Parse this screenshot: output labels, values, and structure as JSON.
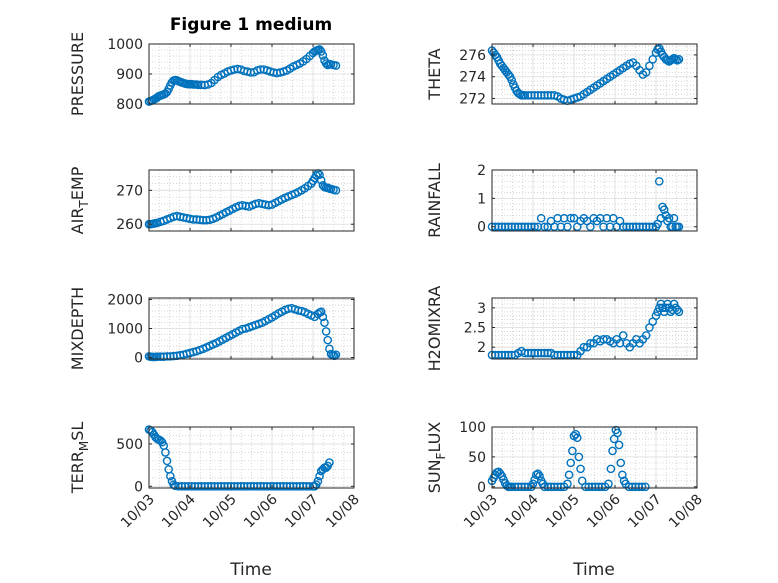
{
  "figure_title": "Figure 1 medium",
  "x_tick_labels": [
    "10/03",
    "10/04",
    "10/05",
    "10/06",
    "10/07",
    "10/08"
  ],
  "x_label": "Time",
  "colors": {
    "marker": "#0072BD",
    "axis": "#262626",
    "grid": "#cccccc"
  },
  "chart_data": [
    {
      "type": "scatter",
      "name": "pressure",
      "ylabel": "PRESSURE",
      "ylabel_sub": "",
      "ylim": [
        800,
        1000
      ],
      "yticks": [
        800,
        900,
        1000
      ],
      "ytick_labels": [
        "800",
        "900",
        "1000"
      ],
      "xlim": [
        0,
        5
      ],
      "grid": true,
      "x": [
        0.0,
        0.04,
        0.08,
        0.12,
        0.16,
        0.2,
        0.24,
        0.28,
        0.32,
        0.36,
        0.4,
        0.44,
        0.48,
        0.52,
        0.56,
        0.6,
        0.64,
        0.68,
        0.72,
        0.76,
        0.8,
        0.84,
        0.88,
        0.92,
        0.96,
        1.0,
        1.04,
        1.08,
        1.12,
        1.16,
        1.2,
        1.28,
        1.36,
        1.44,
        1.52,
        1.6,
        1.68,
        1.76,
        1.84,
        1.92,
        2.0,
        2.08,
        2.16,
        2.24,
        2.32,
        2.4,
        2.48,
        2.56,
        2.64,
        2.72,
        2.8,
        2.88,
        2.96,
        3.04,
        3.12,
        3.2,
        3.28,
        3.36,
        3.44,
        3.52,
        3.6,
        3.68,
        3.76,
        3.84,
        3.92,
        4.0,
        4.04,
        4.08,
        4.12,
        4.16,
        4.2,
        4.24,
        4.28,
        4.32,
        4.36,
        4.4,
        4.44,
        4.5,
        4.56
      ],
      "y": [
        808,
        810,
        812,
        815,
        818,
        822,
        826,
        828,
        830,
        832,
        835,
        840,
        850,
        862,
        872,
        878,
        880,
        879,
        876,
        874,
        872,
        870,
        868,
        867,
        866,
        866,
        866,
        865,
        865,
        865,
        864,
        864,
        863,
        865,
        870,
        880,
        890,
        897,
        902,
        908,
        912,
        915,
        917,
        915,
        910,
        908,
        905,
        906,
        912,
        915,
        915,
        912,
        908,
        905,
        903,
        905,
        908,
        912,
        918,
        925,
        930,
        935,
        942,
        950,
        960,
        970,
        975,
        978,
        980,
        982,
        975,
        962,
        945,
        935,
        930,
        933,
        932,
        930,
        928
      ]
    },
    {
      "type": "scatter",
      "name": "theta",
      "ylabel": "THETA",
      "ylabel_sub": "",
      "ylim": [
        271.5,
        277
      ],
      "yticks": [
        272,
        274,
        276
      ],
      "ytick_labels": [
        "272",
        "274",
        "276"
      ],
      "xlim": [
        0,
        5
      ],
      "grid": true,
      "x": [
        0.0,
        0.04,
        0.08,
        0.12,
        0.16,
        0.2,
        0.24,
        0.28,
        0.32,
        0.36,
        0.4,
        0.44,
        0.48,
        0.52,
        0.56,
        0.6,
        0.64,
        0.68,
        0.72,
        0.76,
        0.8,
        0.88,
        0.96,
        1.04,
        1.12,
        1.2,
        1.28,
        1.36,
        1.44,
        1.52,
        1.6,
        1.68,
        1.76,
        1.84,
        1.92,
        2.0,
        2.08,
        2.16,
        2.24,
        2.32,
        2.4,
        2.48,
        2.56,
        2.64,
        2.72,
        2.8,
        2.88,
        2.96,
        3.04,
        3.12,
        3.2,
        3.28,
        3.36,
        3.44,
        3.52,
        3.6,
        3.68,
        3.76,
        3.84,
        3.92,
        4.0,
        4.04,
        4.08,
        4.12,
        4.16,
        4.2,
        4.24,
        4.28,
        4.32,
        4.36,
        4.4,
        4.44,
        4.48,
        4.52,
        4.56
      ],
      "y": [
        276.4,
        276.2,
        276.0,
        275.8,
        275.5,
        275.2,
        275.0,
        274.8,
        274.6,
        274.4,
        274.2,
        274.0,
        273.7,
        273.3,
        273.0,
        272.7,
        272.5,
        272.4,
        272.3,
        272.3,
        272.3,
        272.3,
        272.3,
        272.3,
        272.3,
        272.3,
        272.3,
        272.3,
        272.3,
        272.3,
        272.2,
        272.0,
        271.9,
        271.8,
        271.9,
        272.0,
        272.1,
        272.2,
        272.4,
        272.6,
        272.8,
        273.0,
        273.2,
        273.4,
        273.6,
        273.8,
        274.0,
        274.2,
        274.4,
        274.6,
        274.8,
        275.0,
        275.2,
        275.3,
        275.0,
        274.6,
        274.2,
        274.4,
        275.0,
        275.6,
        276.2,
        276.5,
        276.6,
        276.3,
        276.0,
        275.8,
        275.6,
        275.5,
        275.4,
        275.5,
        275.6,
        275.7,
        275.6,
        275.5,
        275.6
      ]
    },
    {
      "type": "scatter",
      "name": "air_temp",
      "ylabel": "AIR",
      "ylabel_sub": "T",
      "ylabel_rest": "EMP",
      "ylim": [
        258,
        276
      ],
      "yticks": [
        260,
        270
      ],
      "ytick_labels": [
        "260",
        "270"
      ],
      "xlim": [
        0,
        5
      ],
      "grid": true,
      "x": [
        0.0,
        0.04,
        0.08,
        0.12,
        0.16,
        0.2,
        0.28,
        0.36,
        0.44,
        0.52,
        0.6,
        0.68,
        0.76,
        0.84,
        0.92,
        1.0,
        1.08,
        1.16,
        1.24,
        1.32,
        1.4,
        1.48,
        1.56,
        1.64,
        1.72,
        1.8,
        1.88,
        1.96,
        2.04,
        2.12,
        2.2,
        2.28,
        2.36,
        2.44,
        2.52,
        2.6,
        2.68,
        2.76,
        2.84,
        2.92,
        3.0,
        3.08,
        3.16,
        3.24,
        3.32,
        3.4,
        3.48,
        3.56,
        3.64,
        3.72,
        3.8,
        3.88,
        3.96,
        4.0,
        4.04,
        4.08,
        4.12,
        4.16,
        4.2,
        4.24,
        4.28,
        4.32,
        4.36,
        4.4,
        4.44,
        4.5,
        4.56
      ],
      "y": [
        260.0,
        260.0,
        260.1,
        260.2,
        260.3,
        260.4,
        260.7,
        261.0,
        261.4,
        261.8,
        262.2,
        262.4,
        262.2,
        262.0,
        261.8,
        261.6,
        261.4,
        261.4,
        261.3,
        261.2,
        261.2,
        261.3,
        261.6,
        262.0,
        262.5,
        263.0,
        263.5,
        264.0,
        264.5,
        265.0,
        265.4,
        265.6,
        265.4,
        265.2,
        265.6,
        266.0,
        266.2,
        266.0,
        265.8,
        265.6,
        265.8,
        266.3,
        266.8,
        267.3,
        267.8,
        268.2,
        268.6,
        269.0,
        269.5,
        270.0,
        270.6,
        271.3,
        272.0,
        272.8,
        273.6,
        274.4,
        275.0,
        274.6,
        273.0,
        271.5,
        271.0,
        270.8,
        270.8,
        270.5,
        270.4,
        270.2,
        270.0
      ]
    },
    {
      "type": "scatter",
      "name": "rainfall",
      "ylabel": "RAINFALL",
      "ylabel_sub": "",
      "ylim": [
        -0.15,
        2
      ],
      "yticks": [
        0,
        1,
        2
      ],
      "ytick_labels": [
        "0",
        "1",
        "2"
      ],
      "xlim": [
        0,
        5
      ],
      "grid": true,
      "x": [
        0.0,
        0.08,
        0.16,
        0.24,
        0.32,
        0.4,
        0.48,
        0.56,
        0.64,
        0.72,
        0.8,
        0.88,
        0.96,
        1.04,
        1.12,
        1.2,
        1.28,
        1.36,
        1.44,
        1.52,
        1.6,
        1.68,
        1.76,
        1.84,
        1.92,
        2.0,
        2.08,
        2.16,
        2.24,
        2.32,
        2.4,
        2.48,
        2.56,
        2.64,
        2.72,
        2.8,
        2.88,
        2.96,
        3.04,
        3.12,
        3.2,
        3.28,
        3.36,
        3.44,
        3.52,
        3.6,
        3.68,
        3.76,
        3.84,
        3.92,
        4.0,
        4.04,
        4.08,
        4.12,
        4.16,
        4.2,
        4.24,
        4.28,
        4.32,
        4.36,
        4.4,
        4.44,
        4.48,
        4.52,
        4.56
      ],
      "y": [
        0,
        0,
        0,
        0,
        0,
        0,
        0,
        0,
        0,
        0,
        0,
        0,
        0,
        0,
        0,
        0.3,
        0,
        0,
        0.2,
        0,
        0.3,
        0,
        0.3,
        0,
        0.3,
        0.3,
        0,
        0.2,
        0.3,
        0.2,
        0,
        0.3,
        0.2,
        0.3,
        0,
        0.3,
        0,
        0.3,
        0,
        0.2,
        0,
        0,
        0,
        0,
        0,
        0,
        0,
        0,
        0,
        0,
        0,
        0.1,
        1.6,
        0.3,
        0.7,
        0.6,
        0.4,
        0.2,
        0.3,
        0,
        0,
        0.3,
        0,
        0,
        0
      ]
    },
    {
      "type": "scatter",
      "name": "mixdepth",
      "ylabel": "MIXDEPTH",
      "ylabel_sub": "",
      "ylim": [
        -50,
        2050
      ],
      "yticks": [
        0,
        1000,
        2000
      ],
      "ytick_labels": [
        "0",
        "1000",
        "2000"
      ],
      "xlim": [
        0,
        5
      ],
      "grid": true,
      "x": [
        0.0,
        0.04,
        0.08,
        0.12,
        0.16,
        0.2,
        0.28,
        0.36,
        0.44,
        0.52,
        0.6,
        0.68,
        0.76,
        0.84,
        0.92,
        1.0,
        1.08,
        1.16,
        1.24,
        1.32,
        1.4,
        1.48,
        1.56,
        1.64,
        1.72,
        1.8,
        1.88,
        1.96,
        2.04,
        2.12,
        2.2,
        2.28,
        2.36,
        2.44,
        2.52,
        2.6,
        2.68,
        2.76,
        2.84,
        2.92,
        3.0,
        3.08,
        3.16,
        3.24,
        3.32,
        3.4,
        3.48,
        3.56,
        3.64,
        3.72,
        3.8,
        3.88,
        3.96,
        4.04,
        4.12,
        4.16,
        4.2,
        4.24,
        4.28,
        4.32,
        4.36,
        4.4,
        4.44,
        4.48,
        4.52,
        4.56
      ],
      "y": [
        40,
        30,
        20,
        20,
        20,
        30,
        30,
        30,
        40,
        40,
        50,
        60,
        80,
        100,
        130,
        160,
        190,
        220,
        260,
        300,
        350,
        400,
        450,
        500,
        560,
        620,
        680,
        740,
        800,
        860,
        920,
        980,
        1000,
        1040,
        1080,
        1120,
        1160,
        1200,
        1260,
        1320,
        1380,
        1450,
        1520,
        1580,
        1640,
        1680,
        1700,
        1660,
        1620,
        1600,
        1560,
        1500,
        1450,
        1400,
        1500,
        1550,
        1580,
        1400,
        1200,
        900,
        600,
        300,
        120,
        80,
        60,
        100
      ]
    },
    {
      "type": "scatter",
      "name": "h2omixra",
      "ylabel": "H2OMIXRA",
      "ylabel_sub": "",
      "ylim": [
        1.7,
        3.25
      ],
      "yticks": [
        2,
        2.5,
        3
      ],
      "ytick_labels": [
        "2",
        "2.5",
        "3"
      ],
      "xlim": [
        0,
        5
      ],
      "grid": true,
      "x": [
        0.0,
        0.08,
        0.16,
        0.24,
        0.32,
        0.4,
        0.48,
        0.56,
        0.64,
        0.72,
        0.8,
        0.88,
        0.96,
        1.04,
        1.12,
        1.2,
        1.28,
        1.36,
        1.44,
        1.52,
        1.6,
        1.68,
        1.76,
        1.84,
        1.92,
        2.0,
        2.08,
        2.16,
        2.24,
        2.32,
        2.4,
        2.48,
        2.56,
        2.64,
        2.72,
        2.8,
        2.88,
        2.96,
        3.04,
        3.12,
        3.2,
        3.28,
        3.36,
        3.44,
        3.52,
        3.6,
        3.68,
        3.76,
        3.84,
        3.92,
        4.0,
        4.04,
        4.08,
        4.12,
        4.16,
        4.2,
        4.24,
        4.28,
        4.32,
        4.36,
        4.4,
        4.44,
        4.48,
        4.52,
        4.56
      ],
      "y": [
        1.8,
        1.8,
        1.8,
        1.8,
        1.8,
        1.8,
        1.8,
        1.8,
        1.85,
        1.9,
        1.85,
        1.85,
        1.85,
        1.85,
        1.85,
        1.85,
        1.85,
        1.85,
        1.85,
        1.8,
        1.8,
        1.8,
        1.8,
        1.8,
        1.8,
        1.8,
        1.8,
        1.9,
        2.0,
        2.0,
        2.1,
        2.1,
        2.2,
        2.15,
        2.2,
        2.2,
        2.15,
        2.1,
        2.2,
        2.1,
        2.3,
        2.1,
        2.0,
        2.1,
        2.2,
        2.1,
        2.2,
        2.3,
        2.5,
        2.65,
        2.8,
        2.9,
        3.0,
        3.1,
        3.0,
        2.9,
        3.0,
        3.1,
        3.0,
        2.9,
        2.95,
        3.1,
        3.0,
        2.95,
        2.9
      ]
    },
    {
      "type": "scatter",
      "name": "terr_msl",
      "ylabel": "TERR",
      "ylabel_sub": "M",
      "ylabel_rest": "SL",
      "ylim": [
        -20,
        700
      ],
      "yticks": [
        0,
        500
      ],
      "ytick_labels": [
        "0",
        "500"
      ],
      "xlim": [
        0,
        5
      ],
      "grid": true,
      "x": [
        0.0,
        0.04,
        0.08,
        0.12,
        0.16,
        0.2,
        0.24,
        0.28,
        0.32,
        0.36,
        0.4,
        0.44,
        0.48,
        0.52,
        0.56,
        0.6,
        0.64,
        0.72,
        0.8,
        0.88,
        0.96,
        1.04,
        1.12,
        1.2,
        1.28,
        1.36,
        1.44,
        1.52,
        1.6,
        1.68,
        1.76,
        1.84,
        1.92,
        2.0,
        2.08,
        2.16,
        2.24,
        2.32,
        2.4,
        2.48,
        2.56,
        2.64,
        2.72,
        2.8,
        2.88,
        2.96,
        3.04,
        3.12,
        3.2,
        3.28,
        3.36,
        3.44,
        3.52,
        3.6,
        3.68,
        3.76,
        3.84,
        3.92,
        4.0,
        4.04,
        4.08,
        4.12,
        4.16,
        4.2,
        4.24,
        4.28,
        4.32,
        4.36,
        4.4
      ],
      "y": [
        670,
        660,
        640,
        610,
        580,
        560,
        550,
        540,
        520,
        480,
        400,
        300,
        200,
        120,
        60,
        20,
        5,
        0,
        0,
        0,
        0,
        0,
        0,
        0,
        0,
        0,
        0,
        0,
        0,
        0,
        0,
        0,
        0,
        0,
        0,
        0,
        0,
        0,
        0,
        0,
        0,
        0,
        0,
        0,
        0,
        0,
        0,
        0,
        0,
        0,
        0,
        0,
        0,
        0,
        0,
        0,
        0,
        0,
        0,
        0,
        20,
        60,
        120,
        180,
        200,
        220,
        220,
        240,
        280
      ]
    },
    {
      "type": "scatter",
      "name": "sun_flux",
      "ylabel": "SUN",
      "ylabel_sub": "F",
      "ylabel_rest": "LUX",
      "ylim": [
        -2,
        100
      ],
      "yticks": [
        0,
        50,
        100
      ],
      "ytick_labels": [
        "0",
        "50",
        "100"
      ],
      "xlim": [
        0,
        5
      ],
      "grid": true,
      "x": [
        0.0,
        0.04,
        0.08,
        0.12,
        0.16,
        0.2,
        0.24,
        0.28,
        0.32,
        0.36,
        0.4,
        0.44,
        0.48,
        0.56,
        0.64,
        0.72,
        0.8,
        0.88,
        0.96,
        1.0,
        1.04,
        1.08,
        1.12,
        1.16,
        1.2,
        1.24,
        1.28,
        1.36,
        1.44,
        1.52,
        1.6,
        1.68,
        1.76,
        1.84,
        1.88,
        1.92,
        1.96,
        2.0,
        2.04,
        2.08,
        2.12,
        2.16,
        2.2,
        2.28,
        2.36,
        2.44,
        2.52,
        2.6,
        2.68,
        2.76,
        2.84,
        2.9,
        2.94,
        2.98,
        3.02,
        3.06,
        3.1,
        3.14,
        3.18,
        3.22,
        3.26,
        3.34,
        3.42,
        3.5,
        3.58,
        3.66,
        3.74
      ],
      "y": [
        10,
        15,
        20,
        24,
        25,
        22,
        18,
        12,
        6,
        2,
        0,
        0,
        0,
        0,
        0,
        0,
        0,
        0,
        0,
        5,
        12,
        20,
        22,
        18,
        10,
        5,
        0,
        0,
        0,
        0,
        0,
        0,
        0,
        5,
        20,
        40,
        60,
        85,
        88,
        82,
        50,
        30,
        10,
        0,
        0,
        0,
        0,
        0,
        0,
        0,
        5,
        30,
        60,
        80,
        95,
        90,
        70,
        40,
        20,
        10,
        5,
        0,
        0,
        0,
        0,
        0,
        0
      ]
    }
  ]
}
